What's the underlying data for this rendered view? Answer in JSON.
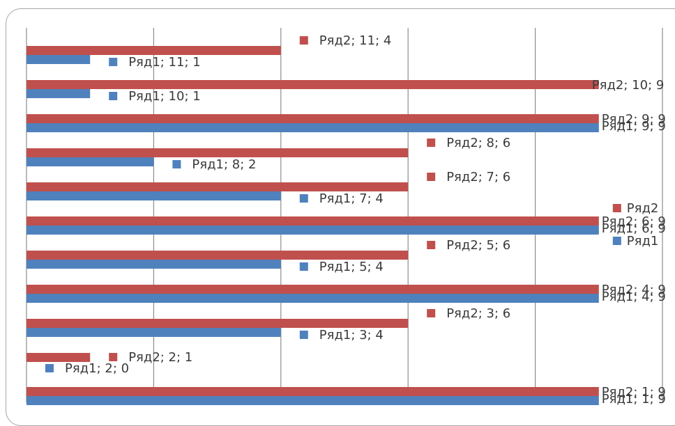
{
  "chart_data": {
    "type": "bar",
    "orientation": "horizontal",
    "grid": "vertical",
    "colors": {
      "Ряд1": "#4f81bd",
      "Ряд2": "#c0504d"
    },
    "categories": [
      "1",
      "2",
      "3",
      "4",
      "5",
      "6",
      "7",
      "8",
      "9",
      "10",
      "11"
    ],
    "series": [
      {
        "name": "Ряд1",
        "values": [
          9,
          0,
          4,
          9,
          4,
          9,
          4,
          2,
          9,
          1,
          1
        ]
      },
      {
        "name": "Ряд2",
        "values": [
          9,
          1,
          6,
          9,
          6,
          9,
          6,
          6,
          9,
          9,
          4
        ]
      }
    ],
    "xlim": [
      0,
      10
    ],
    "data_labels": {
      "Ряд1": [
        "Ряд1; 1; 9",
        "Ряд1; 2; 0",
        "Ряд1; 3; 4",
        "Ряд1; 4; 9",
        "Ряд1; 5; 4",
        "Ряд1; 6; 9",
        "Ряд1; 7; 4",
        "Ряд1; 8; 2",
        "Ряд1; 9; 9",
        "Ряд1; 10; 1",
        "Ряд1; 11; 1"
      ],
      "Ряд2": [
        "Ряд2; 1; 9",
        "Ряд2; 2; 1",
        "Ряд2; 3; 6",
        "Ряд2; 4; 9",
        "Ряд2; 5; 6",
        "Ряд2; 6; 9",
        "Ряд2; 7; 6",
        "Ряд2; 8; 6",
        "Ряд2; 9; 9",
        "Ряд2; 10; 9",
        "Ряд2; 11; 4"
      ]
    },
    "extra_labels": [
      {
        "series": "Ряд2",
        "text": "Ряд2"
      },
      {
        "series": "Ряд1",
        "text": "Ряд1"
      }
    ]
  }
}
